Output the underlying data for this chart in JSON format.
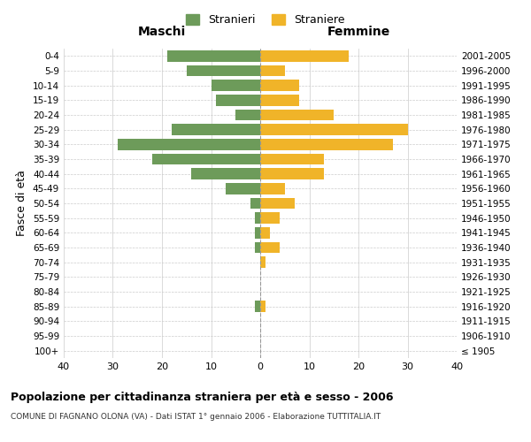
{
  "age_groups": [
    "100+",
    "95-99",
    "90-94",
    "85-89",
    "80-84",
    "75-79",
    "70-74",
    "65-69",
    "60-64",
    "55-59",
    "50-54",
    "45-49",
    "40-44",
    "35-39",
    "30-34",
    "25-29",
    "20-24",
    "15-19",
    "10-14",
    "5-9",
    "0-4"
  ],
  "birth_years": [
    "≤ 1905",
    "1906-1910",
    "1911-1915",
    "1916-1920",
    "1921-1925",
    "1926-1930",
    "1931-1935",
    "1936-1940",
    "1941-1945",
    "1946-1950",
    "1951-1955",
    "1956-1960",
    "1961-1965",
    "1966-1970",
    "1971-1975",
    "1976-1980",
    "1981-1985",
    "1986-1990",
    "1991-1995",
    "1996-2000",
    "2001-2005"
  ],
  "maschi": [
    0,
    0,
    0,
    1,
    0,
    0,
    0,
    1,
    1,
    1,
    2,
    7,
    14,
    22,
    29,
    18,
    5,
    9,
    10,
    15,
    19
  ],
  "femmine": [
    0,
    0,
    0,
    1,
    0,
    0,
    1,
    4,
    2,
    4,
    7,
    5,
    13,
    13,
    27,
    30,
    15,
    8,
    8,
    5,
    18
  ],
  "color_maschi": "#6d9b5a",
  "color_femmine": "#f0b429",
  "background_color": "#ffffff",
  "grid_color": "#cccccc",
  "title": "Popolazione per cittadinanza straniera per età e sesso - 2006",
  "subtitle": "COMUNE DI FAGNANO OLONA (VA) - Dati ISTAT 1° gennaio 2006 - Elaborazione TUTTITALIA.IT",
  "ylabel_left": "Fasce di età",
  "xlabel_maschi": "Maschi",
  "xlabel_femmine": "Femmine",
  "legend_maschi": "Stranieri",
  "legend_femmine": "Straniere",
  "xlim": 40,
  "title_fontsize": 9,
  "subtitle_fontsize": 6.5,
  "bar_height": 0.75
}
